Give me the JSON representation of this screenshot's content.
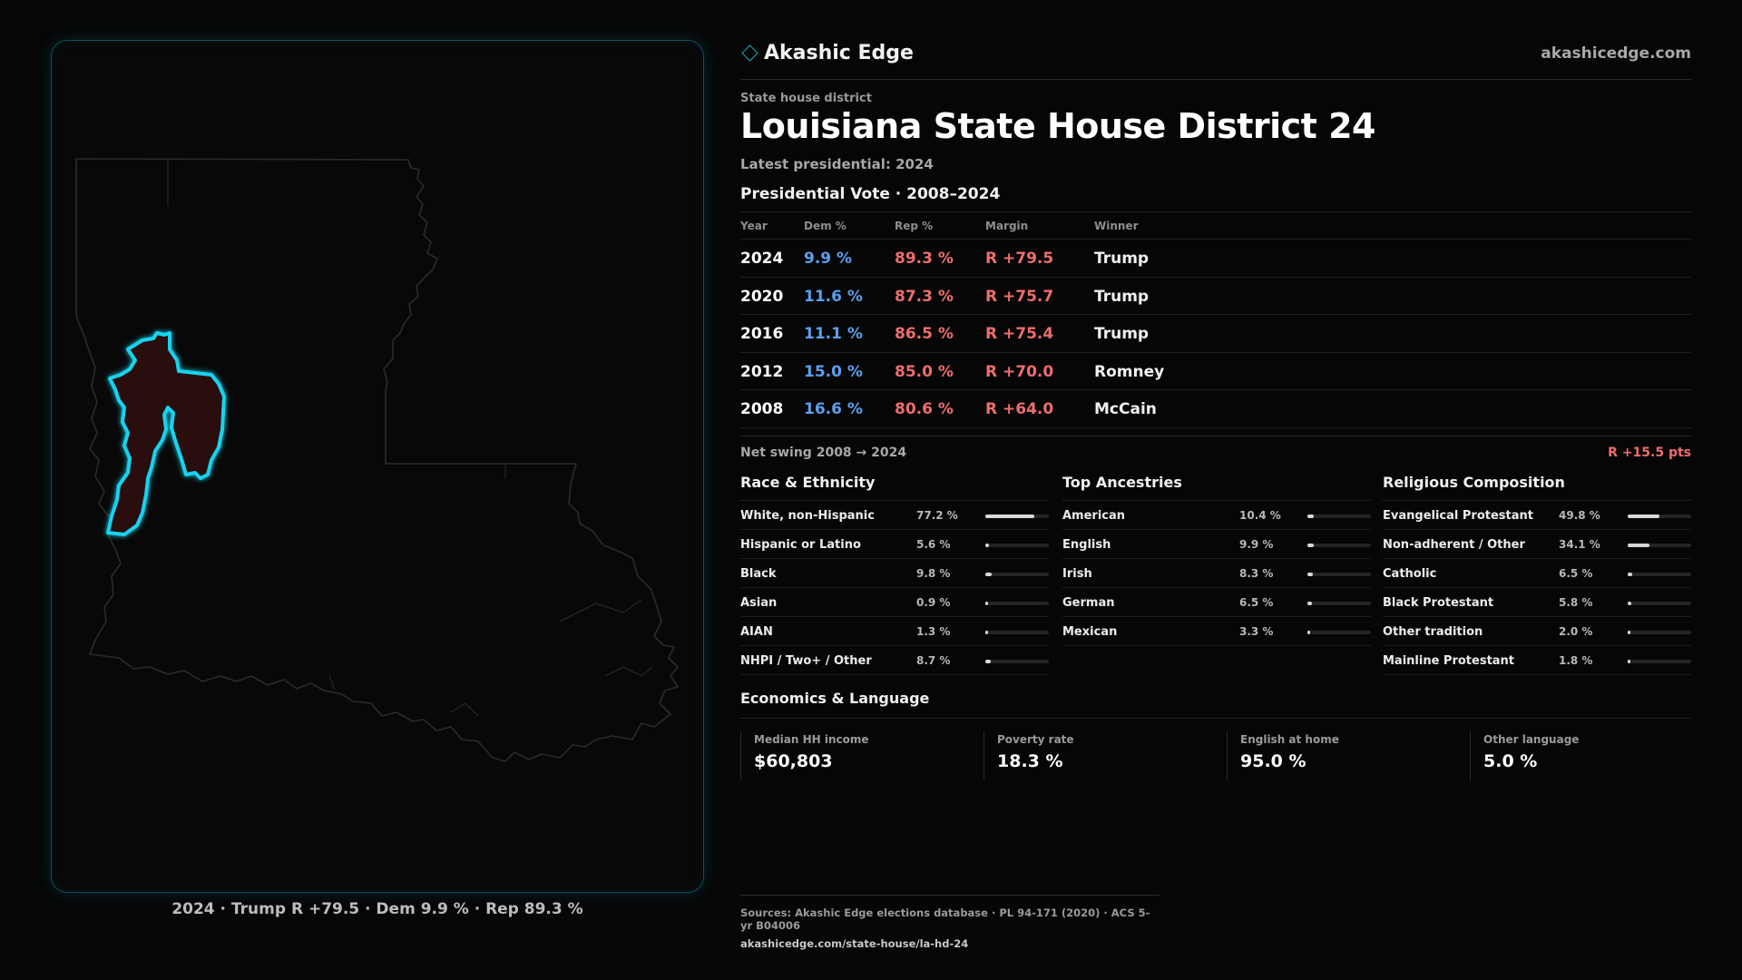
{
  "brand": {
    "name": "Akashic Edge",
    "url": "akashicedge.com"
  },
  "header": {
    "kicker": "State house district",
    "title": "Louisiana State House District 24",
    "latest": "Latest presidential: 2024"
  },
  "vote": {
    "title": "Presidential Vote · 2008–2024",
    "columns": [
      "Year",
      "Dem %",
      "Rep %",
      "Margin",
      "Winner"
    ],
    "rows": [
      {
        "year": "2024",
        "dem": "9.9 %",
        "rep": "89.3 %",
        "margin": "R +79.5",
        "winner": "Trump"
      },
      {
        "year": "2020",
        "dem": "11.6 %",
        "rep": "87.3 %",
        "margin": "R +75.7",
        "winner": "Trump"
      },
      {
        "year": "2016",
        "dem": "11.1 %",
        "rep": "86.5 %",
        "margin": "R +75.4",
        "winner": "Trump"
      },
      {
        "year": "2012",
        "dem": "15.0 %",
        "rep": "85.0 %",
        "margin": "R +70.0",
        "winner": "Romney"
      },
      {
        "year": "2008",
        "dem": "16.6 %",
        "rep": "80.6 %",
        "margin": "R +64.0",
        "winner": "McCain"
      }
    ],
    "swing_label": "Net swing 2008 → 2024",
    "swing_value": "R +15.5 pts"
  },
  "race": {
    "title": "Race & Ethnicity",
    "items": [
      {
        "label": "White, non-Hispanic",
        "value": "77.2 %",
        "pct": 77.2
      },
      {
        "label": "Hispanic or Latino",
        "value": "5.6 %",
        "pct": 5.6
      },
      {
        "label": "Black",
        "value": "9.8 %",
        "pct": 9.8
      },
      {
        "label": "Asian",
        "value": "0.9 %",
        "pct": 0.9
      },
      {
        "label": "AIAN",
        "value": "1.3 %",
        "pct": 1.3
      },
      {
        "label": "NHPI / Two+ / Other",
        "value": "8.7 %",
        "pct": 8.7
      }
    ]
  },
  "ancestry": {
    "title": "Top Ancestries",
    "items": [
      {
        "label": "American",
        "value": "10.4 %",
        "pct": 10.4
      },
      {
        "label": "English",
        "value": "9.9 %",
        "pct": 9.9
      },
      {
        "label": "Irish",
        "value": "8.3 %",
        "pct": 8.3
      },
      {
        "label": "German",
        "value": "6.5 %",
        "pct": 6.5
      },
      {
        "label": "Mexican",
        "value": "3.3 %",
        "pct": 3.3
      }
    ]
  },
  "religion": {
    "title": "Religious Composition",
    "items": [
      {
        "label": "Evangelical Protestant",
        "value": "49.8 %",
        "pct": 49.8
      },
      {
        "label": "Non-adherent / Other",
        "value": "34.1 %",
        "pct": 34.1
      },
      {
        "label": "Catholic",
        "value": "6.5 %",
        "pct": 6.5
      },
      {
        "label": "Black Protestant",
        "value": "5.8 %",
        "pct": 5.8
      },
      {
        "label": "Other tradition",
        "value": "2.0 %",
        "pct": 2.0
      },
      {
        "label": "Mainline Protestant",
        "value": "1.8 %",
        "pct": 1.8
      }
    ]
  },
  "economics": {
    "title": "Economics & Language",
    "cells": [
      {
        "label": "Median HH income",
        "value": "$60,803"
      },
      {
        "label": "Poverty rate",
        "value": "18.3 %"
      },
      {
        "label": "English at home",
        "value": "95.0 %"
      },
      {
        "label": "Other language",
        "value": "5.0 %"
      }
    ]
  },
  "map": {
    "caption": "2024 · Trump R +79.5 · Dem 9.9 % · Rep 89.3 %",
    "outline_color": "#2b2b2b",
    "district_stroke": "#19d3ee",
    "district_fill": "#2a0d10"
  },
  "sources": {
    "line": "Sources: Akashic Edge elections database · PL 94-171 (2020) · ACS 5-yr B04006",
    "url": "akashicedge.com/state-house/la-hd-24"
  },
  "colors": {
    "dem": "#5aa0f0",
    "rep": "#ef6d6d",
    "accent": "#1aa6b8"
  }
}
